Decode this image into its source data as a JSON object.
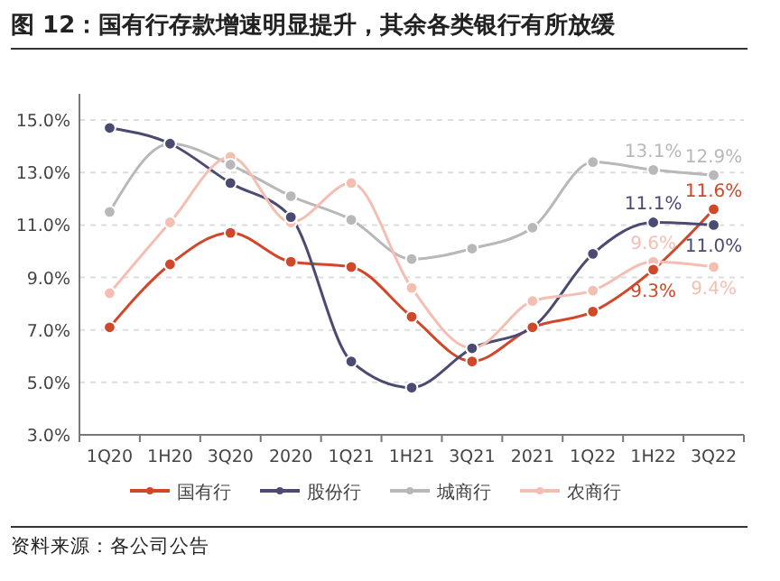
{
  "chart_data": {
    "type": "line",
    "title": "图 12：国有行存款增速明显提升，其余各类银行有所放缓",
    "annotations": [
      "资料来源：各公司公告"
    ],
    "categories": [
      "1Q20",
      "1H20",
      "3Q20",
      "2020",
      "1Q21",
      "1H21",
      "3Q21",
      "2021",
      "1Q22",
      "1H22",
      "3Q22"
    ],
    "series": [
      {
        "name": "国有行",
        "color": "#d0472a",
        "values": [
          7.1,
          9.5,
          10.7,
          9.6,
          9.4,
          7.5,
          5.8,
          7.1,
          7.7,
          9.3,
          11.6
        ],
        "value_labels": [
          null,
          null,
          null,
          null,
          null,
          null,
          null,
          null,
          null,
          "9.3%",
          "11.6%"
        ]
      },
      {
        "name": "股份行",
        "color": "#4a4a72",
        "values": [
          14.7,
          14.1,
          12.6,
          11.3,
          5.8,
          4.8,
          6.3,
          7.1,
          9.9,
          11.1,
          11.0
        ],
        "value_labels": [
          null,
          null,
          null,
          null,
          null,
          null,
          null,
          null,
          null,
          "11.1%",
          "11.0%"
        ]
      },
      {
        "name": "城商行",
        "color": "#b8b8b8",
        "values": [
          11.5,
          14.1,
          13.3,
          12.1,
          11.2,
          9.7,
          10.1,
          10.9,
          13.4,
          13.1,
          12.9
        ],
        "value_labels": [
          null,
          null,
          null,
          null,
          null,
          null,
          null,
          null,
          null,
          "13.1%",
          "12.9%"
        ]
      },
      {
        "name": "农商行",
        "color": "#f4bfb2",
        "values": [
          8.4,
          11.1,
          13.6,
          11.1,
          12.6,
          8.6,
          6.3,
          8.1,
          8.5,
          9.6,
          9.4
        ],
        "value_labels": [
          null,
          null,
          null,
          null,
          null,
          null,
          null,
          null,
          null,
          "9.6%",
          "9.4%"
        ]
      }
    ],
    "ylim": [
      3,
      16
    ],
    "yticks": [
      {
        "value": 3,
        "label": "3.0%"
      },
      {
        "value": 5,
        "label": "5.0%"
      },
      {
        "value": 7,
        "label": "7.0%"
      },
      {
        "value": 9,
        "label": "9.0%"
      },
      {
        "value": 11,
        "label": "11.0%"
      },
      {
        "value": 13,
        "label": "13.0%"
      },
      {
        "value": 15,
        "label": "15.0%"
      }
    ],
    "grid": "y",
    "legend": "bottom",
    "marker": "circle",
    "line_style": "solid"
  }
}
